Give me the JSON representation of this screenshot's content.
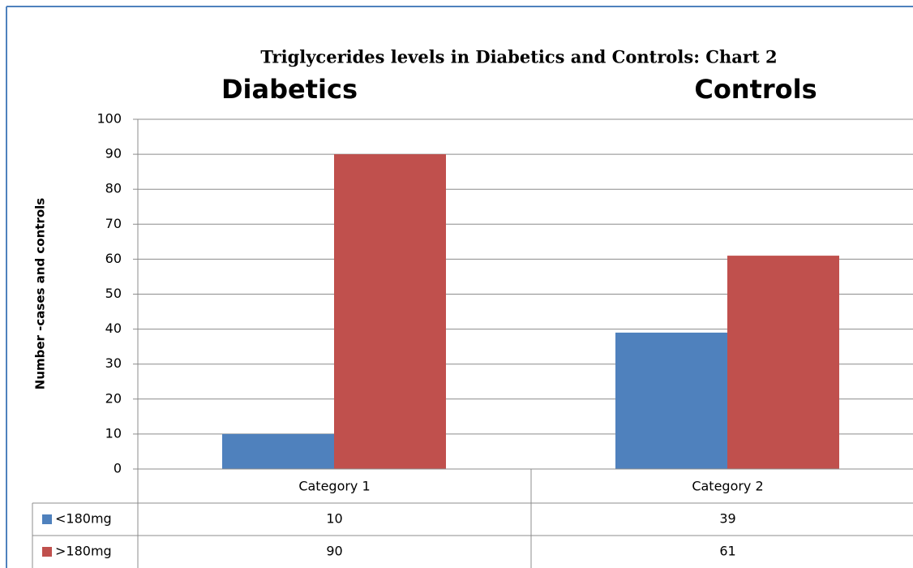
{
  "chart_data": {
    "type": "bar",
    "title": "Triglycerides levels in Diabetics and Controls: Chart 2",
    "annotations": [
      "Diabetics",
      "Controls"
    ],
    "y_label": "Number -cases and controls",
    "categories": [
      "Category 1",
      "Category 2"
    ],
    "series": [
      {
        "name": "<180mg",
        "color": "#4f81bd",
        "values": [
          10,
          39
        ]
      },
      {
        "name": ">180mg",
        "color": "#c0504d",
        "values": [
          90,
          61
        ]
      }
    ],
    "ylim": [
      0,
      100
    ],
    "yticks": [
      0,
      10,
      20,
      30,
      40,
      50,
      60,
      70,
      80,
      90,
      100
    ],
    "grid": true,
    "legend": "data-table"
  }
}
